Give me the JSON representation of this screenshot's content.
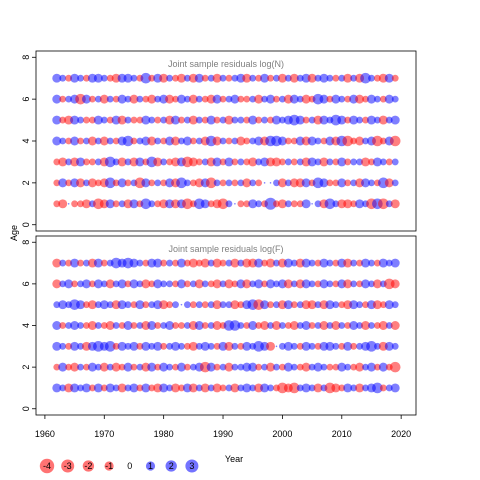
{
  "chart_data": {
    "type": "scatter",
    "ylabel": "Age",
    "xlabel": "Year",
    "x_range": [
      1962,
      2019
    ],
    "xlim": [
      1958.5,
      2022.5
    ],
    "x_ticks": [
      1960,
      1970,
      1980,
      1990,
      2000,
      2010,
      2020
    ],
    "y_ticks": [
      0,
      2,
      4,
      6,
      8
    ],
    "colors": {
      "positive": "#0000ff",
      "negative": "#ff0000"
    },
    "legend": {
      "placement": "bottom-left",
      "items": [
        {
          "label": "-4",
          "value": -4
        },
        {
          "label": "-3",
          "value": -3
        },
        {
          "label": "-2",
          "value": -2
        },
        {
          "label": "-1",
          "value": -1
        },
        {
          "label": "0",
          "value": 0
        },
        {
          "label": "1",
          "value": 1
        },
        {
          "label": "2",
          "value": 2
        },
        {
          "label": "3",
          "value": 3
        }
      ]
    },
    "panels": [
      {
        "title": "Joint sample residuals log(N)",
        "ylim": [
          -0.3,
          8.3
        ],
        "ages": [
          1,
          2,
          3,
          4,
          5,
          6,
          7
        ],
        "rows": {
          "1": [
            -1,
            -2,
            0,
            -1,
            -1,
            -2,
            1,
            -3,
            -2,
            2,
            -1,
            1,
            -2,
            2,
            -1,
            3,
            1,
            -1,
            -2,
            2,
            -2,
            2,
            -3,
            -1,
            3,
            2,
            -1,
            -2,
            -3,
            1,
            0,
            -1,
            -1,
            2,
            1,
            -1,
            4,
            -1,
            -2,
            1,
            -1,
            -1,
            2,
            0,
            1,
            -2,
            3,
            1,
            -2,
            -2,
            -1,
            2,
            1,
            -3,
            3,
            -3,
            1,
            -2
          ],
          "2": [
            -1,
            2,
            -1,
            2,
            -2,
            1,
            -2,
            -1,
            -2,
            3,
            -1,
            2,
            -1,
            1,
            -3,
            2,
            -1,
            1,
            -1,
            2,
            -2,
            3,
            1,
            -1,
            -2,
            2,
            -3,
            1,
            -1,
            1,
            -1,
            1,
            -2,
            1,
            -1,
            0,
            0,
            1,
            -2,
            1,
            -2,
            -2,
            2,
            -1,
            3,
            2,
            -1,
            -1,
            2,
            -1,
            1,
            -2,
            2,
            1,
            -1,
            3,
            -2,
            1
          ],
          "3": [
            -1,
            -2,
            1,
            -2,
            2,
            -1,
            -1,
            1,
            -2,
            3,
            1,
            -2,
            1,
            -2,
            2,
            -1,
            3,
            -2,
            1,
            -1,
            -2,
            2,
            -3,
            -2,
            -1,
            1,
            -2,
            2,
            -1,
            2,
            -1,
            1,
            -1,
            -2,
            1,
            2,
            -2,
            -2,
            -1,
            1,
            -1,
            1,
            -2,
            2,
            1,
            -2,
            1,
            -1,
            2,
            -1,
            1,
            1,
            -2,
            -1,
            2,
            1,
            -1,
            1
          ],
          "4": [
            2,
            1,
            -1,
            2,
            -1,
            1,
            -2,
            1,
            -2,
            1,
            -1,
            2,
            3,
            -1,
            1,
            2,
            -2,
            1,
            -1,
            2,
            -2,
            1,
            2,
            -1,
            1,
            -2,
            3,
            -2,
            1,
            -1,
            1,
            -2,
            -1,
            1,
            2,
            -2,
            3,
            3,
            2,
            -1,
            -1,
            2,
            -2,
            2,
            1,
            -1,
            2,
            -2,
            3,
            -3,
            -1,
            -2,
            1,
            2,
            -3,
            -1,
            2,
            -3
          ],
          "5": [
            2,
            -1,
            -2,
            2,
            1,
            -1,
            -1,
            2,
            1,
            -1,
            2,
            -2,
            1,
            -1,
            -1,
            2,
            1,
            -1,
            1,
            -2,
            2,
            -1,
            1,
            -2,
            1,
            -1,
            2,
            -1,
            1,
            -2,
            1,
            1,
            -1,
            2,
            -1,
            1,
            -1,
            2,
            1,
            2,
            3,
            2,
            -1,
            1,
            -2,
            2,
            1,
            3,
            2,
            -1,
            2,
            1,
            -1,
            2,
            1,
            -2,
            1,
            2
          ],
          "6": [
            2,
            -1,
            1,
            2,
            -3,
            2,
            -1,
            1,
            -2,
            1,
            -1,
            2,
            1,
            -2,
            1,
            -1,
            -2,
            1,
            2,
            -2,
            -1,
            2,
            1,
            -2,
            1,
            -1,
            -2,
            2,
            -1,
            1,
            2,
            -1,
            -1,
            1,
            -2,
            1,
            2,
            -1,
            1,
            -2,
            2,
            1,
            -2,
            -1,
            3,
            2,
            -1,
            2,
            1,
            -1,
            2,
            -2,
            -1,
            2,
            1,
            -1,
            2,
            1
          ],
          "7": [
            2,
            1,
            -1,
            2,
            1,
            -1,
            2,
            2,
            1,
            -1,
            -2,
            2,
            2,
            1,
            -1,
            3,
            -1,
            2,
            -2,
            1,
            -1,
            -2,
            1,
            -2,
            2,
            -1,
            1,
            -2,
            1,
            -1,
            1,
            2,
            -2,
            1,
            -1,
            2,
            -1,
            1,
            -2,
            1,
            -2,
            1,
            2,
            -2,
            1,
            2,
            1,
            -1,
            1,
            -2,
            1,
            -2,
            3,
            1,
            -1,
            -2,
            2,
            -1
          ]
        }
      },
      {
        "title": "Joint sample residuals log(F)",
        "ylim": [
          -0.3,
          8.3
        ],
        "ages": [
          1,
          2,
          3,
          4,
          5,
          6,
          7
        ],
        "rows": {
          "1": [
            2,
            1,
            -2,
            2,
            1,
            2,
            -1,
            2,
            -1,
            2,
            1,
            -2,
            1,
            2,
            -1,
            2,
            -1,
            -2,
            2,
            1,
            -2,
            -1,
            2,
            -2,
            1,
            -2,
            1,
            -2,
            -1,
            1,
            -2,
            1,
            2,
            1,
            -2,
            2,
            1,
            -1,
            -3,
            -2,
            -3,
            1,
            2,
            1,
            -2,
            1,
            -3,
            -2,
            -1,
            2,
            1,
            -2,
            1,
            2,
            3,
            -1,
            1,
            2
          ],
          "2": [
            -1,
            2,
            -1,
            -2,
            1,
            -1,
            2,
            1,
            -2,
            1,
            -2,
            -1,
            2,
            -1,
            1,
            -2,
            2,
            -1,
            2,
            1,
            -1,
            2,
            -1,
            1,
            2,
            -3,
            2,
            -1,
            1,
            -2,
            1,
            1,
            2,
            2,
            -1,
            1,
            -2,
            1,
            -1,
            2,
            1,
            -1,
            -2,
            1,
            2,
            1,
            -1,
            -1,
            2,
            1,
            -1,
            -2,
            1,
            2,
            -1,
            2,
            -1,
            -3
          ],
          "3": [
            2,
            1,
            -1,
            2,
            1,
            -2,
            2,
            3,
            2,
            3,
            -1,
            2,
            1,
            2,
            -1,
            2,
            1,
            2,
            -1,
            1,
            2,
            1,
            -1,
            -2,
            1,
            2,
            1,
            -1,
            2,
            -2,
            1,
            -1,
            2,
            1,
            3,
            2,
            -2,
            0,
            1,
            2,
            1,
            -1,
            2,
            1,
            -1,
            2,
            2,
            1,
            -1,
            2,
            -1,
            1,
            2,
            3,
            1,
            -2,
            2,
            1
          ],
          "4": [
            2,
            -1,
            1,
            2,
            1,
            -1,
            -2,
            1,
            -1,
            -2,
            1,
            -1,
            2,
            -1,
            1,
            -2,
            2,
            -1,
            1,
            2,
            -1,
            -1,
            1,
            -2,
            2,
            -1,
            1,
            -2,
            -1,
            3,
            3,
            1,
            -1,
            2,
            -1,
            -2,
            1,
            -2,
            1,
            -1,
            -2,
            1,
            2,
            -1,
            1,
            -2,
            1,
            -2,
            1,
            -1,
            2,
            1,
            -2,
            1,
            -1,
            -2,
            1,
            -2
          ],
          "5": [
            1,
            2,
            1,
            3,
            2,
            -1,
            -2,
            1,
            2,
            1,
            -2,
            2,
            1,
            -1,
            2,
            -1,
            1,
            2,
            -2,
            -1,
            1,
            0,
            1,
            -1,
            1,
            -1,
            1,
            -2,
            1,
            1,
            -2,
            -1,
            2,
            3,
            -3,
            2,
            -1,
            1,
            -2,
            2,
            -1,
            1,
            -2,
            -2,
            1,
            -2,
            2,
            1,
            -1,
            -2,
            2,
            1,
            -1,
            2,
            -2,
            -1,
            2,
            1
          ],
          "6": [
            -2,
            1,
            2,
            -1,
            1,
            2,
            -1,
            2,
            1,
            -2,
            1,
            2,
            -1,
            2,
            1,
            -2,
            -1,
            2,
            1,
            1,
            -1,
            2,
            -1,
            1,
            -2,
            1,
            -1,
            -2,
            1,
            -2,
            -1,
            2,
            -2,
            1,
            2,
            -1,
            2,
            1,
            2,
            -2,
            1,
            -2,
            2,
            1,
            -1,
            2,
            1,
            -1,
            2,
            -2,
            1,
            -1,
            2,
            1,
            -2,
            1,
            -3,
            -2
          ],
          "7": [
            -2,
            1,
            -1,
            2,
            -1,
            1,
            -2,
            2,
            -1,
            1,
            3,
            2,
            3,
            2,
            1,
            -1,
            2,
            2,
            -1,
            1,
            -1,
            2,
            -1,
            -2,
            -1,
            -2,
            1,
            -2,
            -1,
            1,
            -2,
            1,
            -2,
            -2,
            2,
            -1,
            -2,
            1,
            -2,
            2,
            1,
            -2,
            2,
            1,
            -1,
            2,
            1,
            -1,
            2,
            -2,
            1,
            -1,
            2,
            1,
            -1,
            2,
            1,
            2
          ]
        }
      }
    ]
  }
}
